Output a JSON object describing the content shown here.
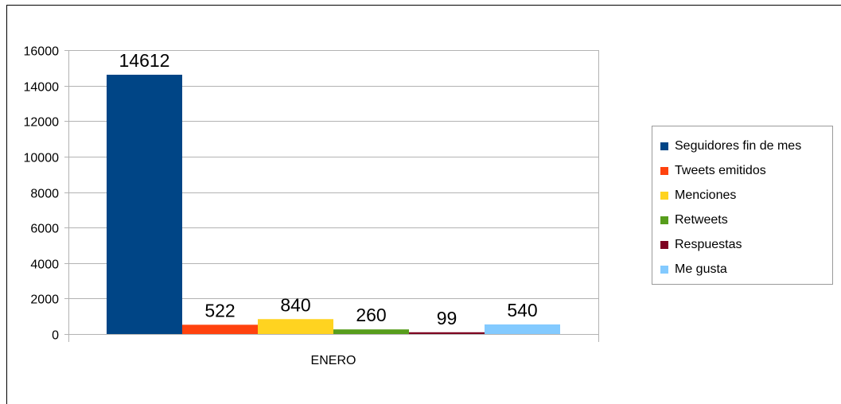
{
  "chart_data": {
    "type": "bar",
    "title": "",
    "xlabel": "",
    "ylabel": "",
    "categories": [
      "ENERO"
    ],
    "ylim": [
      0,
      16000
    ],
    "yticks": [
      0,
      2000,
      4000,
      6000,
      8000,
      10000,
      12000,
      14000,
      16000
    ],
    "grid": true,
    "legend_position": "right",
    "series": [
      {
        "name": "Seguidores fin de mes",
        "values": [
          14612
        ],
        "color": "#004586"
      },
      {
        "name": "Tweets emitidos",
        "values": [
          522
        ],
        "color": "#ff420e"
      },
      {
        "name": "Menciones",
        "values": [
          840
        ],
        "color": "#ffd320"
      },
      {
        "name": "Retweets",
        "values": [
          260
        ],
        "color": "#579d1c"
      },
      {
        "name": "Respuestas",
        "values": [
          99
        ],
        "color": "#7e0021"
      },
      {
        "name": "Me gusta",
        "values": [
          540
        ],
        "color": "#83caff"
      }
    ]
  }
}
